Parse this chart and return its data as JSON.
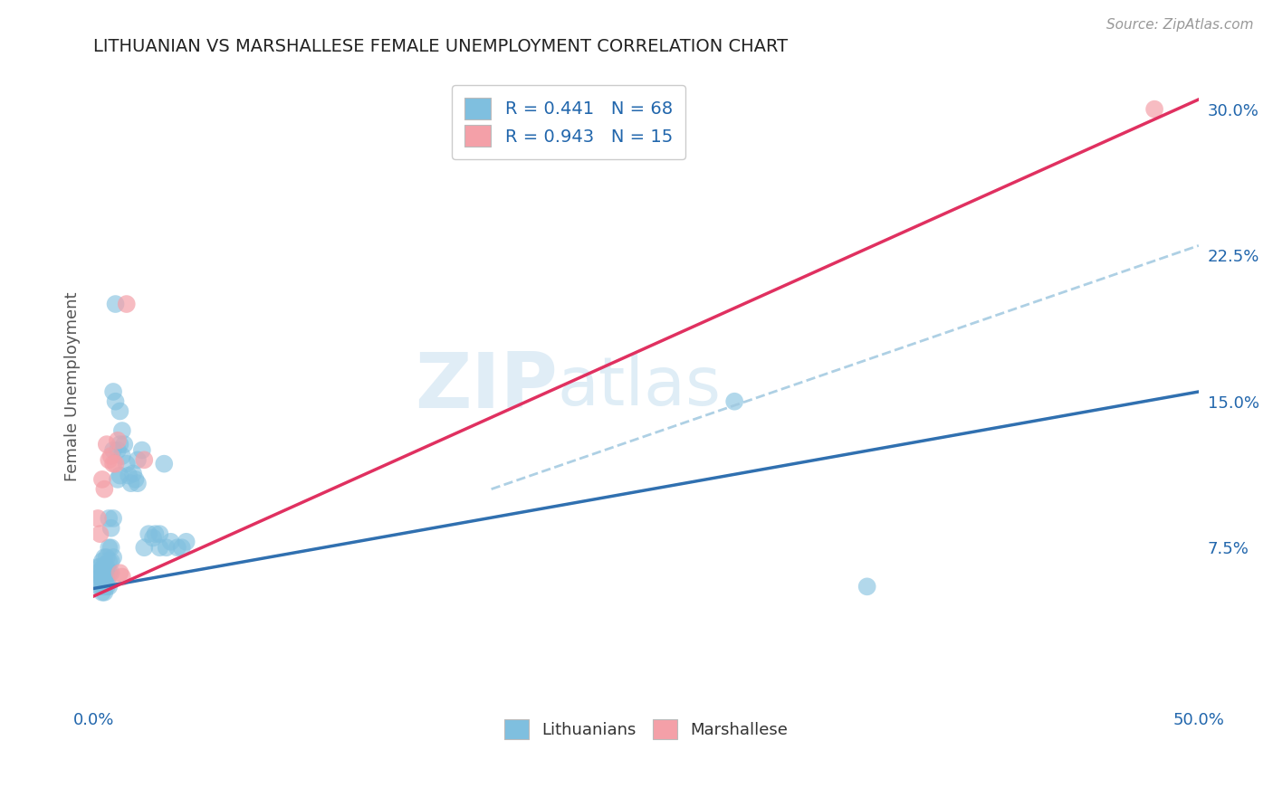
{
  "title": "LITHUANIAN VS MARSHALLESE FEMALE UNEMPLOYMENT CORRELATION CHART",
  "source": "Source: ZipAtlas.com",
  "ylabel": "Female Unemployment",
  "xlim": [
    0.0,
    0.5
  ],
  "ylim": [
    -0.005,
    0.32
  ],
  "yticks_right": [
    0.075,
    0.15,
    0.225,
    0.3
  ],
  "ytick_labels_right": [
    "7.5%",
    "15.0%",
    "22.5%",
    "30.0%"
  ],
  "blue_color": "#7fbfdf",
  "pink_color": "#f4a0a8",
  "blue_line_color": "#3070b0",
  "pink_line_color": "#e03060",
  "dashed_color": "#a0c8e0",
  "grid_color": "#d0d0d0",
  "blue_trend_x": [
    0.0,
    0.5
  ],
  "blue_trend_y": [
    0.054,
    0.155
  ],
  "pink_trend_x": [
    0.0,
    0.5
  ],
  "pink_trend_y": [
    0.05,
    0.305
  ],
  "dashed_trend_x": [
    0.18,
    0.5
  ],
  "dashed_trend_y": [
    0.105,
    0.23
  ],
  "blue_points": [
    [
      0.002,
      0.065
    ],
    [
      0.002,
      0.062
    ],
    [
      0.003,
      0.065
    ],
    [
      0.003,
      0.06
    ],
    [
      0.003,
      0.058
    ],
    [
      0.003,
      0.055
    ],
    [
      0.004,
      0.068
    ],
    [
      0.004,
      0.064
    ],
    [
      0.004,
      0.06
    ],
    [
      0.004,
      0.058
    ],
    [
      0.004,
      0.055
    ],
    [
      0.004,
      0.052
    ],
    [
      0.005,
      0.07
    ],
    [
      0.005,
      0.066
    ],
    [
      0.005,
      0.062
    ],
    [
      0.005,
      0.058
    ],
    [
      0.005,
      0.055
    ],
    [
      0.005,
      0.052
    ],
    [
      0.006,
      0.07
    ],
    [
      0.006,
      0.065
    ],
    [
      0.006,
      0.062
    ],
    [
      0.006,
      0.058
    ],
    [
      0.006,
      0.055
    ],
    [
      0.007,
      0.09
    ],
    [
      0.007,
      0.075
    ],
    [
      0.007,
      0.068
    ],
    [
      0.007,
      0.062
    ],
    [
      0.007,
      0.055
    ],
    [
      0.008,
      0.085
    ],
    [
      0.008,
      0.075
    ],
    [
      0.008,
      0.068
    ],
    [
      0.008,
      0.062
    ],
    [
      0.009,
      0.155
    ],
    [
      0.009,
      0.125
    ],
    [
      0.009,
      0.09
    ],
    [
      0.009,
      0.07
    ],
    [
      0.01,
      0.2
    ],
    [
      0.01,
      0.15
    ],
    [
      0.011,
      0.125
    ],
    [
      0.011,
      0.11
    ],
    [
      0.012,
      0.145
    ],
    [
      0.012,
      0.128
    ],
    [
      0.012,
      0.112
    ],
    [
      0.013,
      0.135
    ],
    [
      0.013,
      0.122
    ],
    [
      0.014,
      0.128
    ],
    [
      0.015,
      0.118
    ],
    [
      0.016,
      0.112
    ],
    [
      0.017,
      0.108
    ],
    [
      0.018,
      0.113
    ],
    [
      0.019,
      0.11
    ],
    [
      0.02,
      0.12
    ],
    [
      0.02,
      0.108
    ],
    [
      0.022,
      0.125
    ],
    [
      0.023,
      0.075
    ],
    [
      0.025,
      0.082
    ],
    [
      0.027,
      0.08
    ],
    [
      0.028,
      0.082
    ],
    [
      0.03,
      0.082
    ],
    [
      0.03,
      0.075
    ],
    [
      0.032,
      0.118
    ],
    [
      0.033,
      0.075
    ],
    [
      0.035,
      0.078
    ],
    [
      0.038,
      0.075
    ],
    [
      0.04,
      0.075
    ],
    [
      0.042,
      0.078
    ],
    [
      0.29,
      0.15
    ],
    [
      0.35,
      0.055
    ]
  ],
  "pink_points": [
    [
      0.002,
      0.09
    ],
    [
      0.003,
      0.082
    ],
    [
      0.004,
      0.11
    ],
    [
      0.005,
      0.105
    ],
    [
      0.006,
      0.128
    ],
    [
      0.007,
      0.12
    ],
    [
      0.008,
      0.122
    ],
    [
      0.009,
      0.118
    ],
    [
      0.01,
      0.118
    ],
    [
      0.011,
      0.13
    ],
    [
      0.012,
      0.062
    ],
    [
      0.013,
      0.06
    ],
    [
      0.015,
      0.2
    ],
    [
      0.023,
      0.12
    ],
    [
      0.48,
      0.3
    ]
  ]
}
